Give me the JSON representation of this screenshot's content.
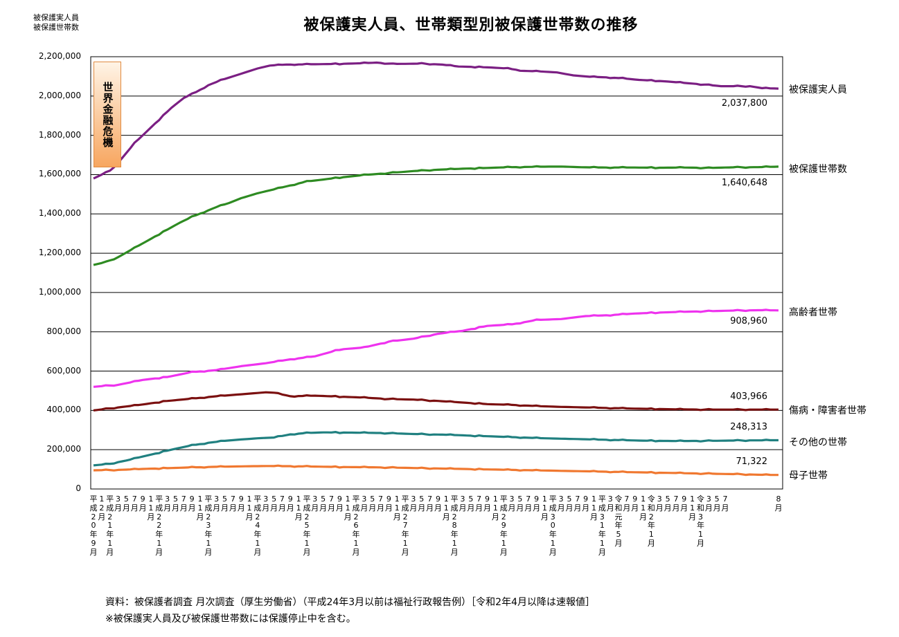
{
  "header": {
    "ylabel_line1": "被保護実人員",
    "ylabel_line2": "被保護世帯数",
    "title": "被保護実人員、世帯類型別被保護世帯数の推移"
  },
  "annotation": {
    "crisis_label": "世界金融危機"
  },
  "footer": {
    "source": "資料：被保護者調査 月次調査（厚生労働省）（平成24年3月以前は福祉行政報告例）［令和2年4月以降は速報値］",
    "note": "※被保護実人員及び被保護世帯数には保護停止中を含む。"
  },
  "chart_data": {
    "type": "line",
    "title": "被保護実人員、世帯類型別被保護世帯数の推移",
    "ylim": [
      0,
      2200000
    ],
    "grid": "horizontal",
    "legend": "right-end labels",
    "y_ticks": [
      "0",
      "200,000",
      "400,000",
      "600,000",
      "800,000",
      "1,000,000",
      "1,200,000",
      "1,400,000",
      "1,600,000",
      "1,800,000",
      "2,000,000",
      "2,200,000"
    ],
    "x_tick_labels": [
      "平\n成\n2\n0\n年\n9\n月",
      "1\n2\n月",
      "平\n成\n2\n1\n年\n1\n月",
      "3\n月",
      "5\n月",
      "7\n月",
      "9\n月",
      "1\n1\n月",
      "平\n成\n2\n2\n年\n1\n月",
      "3\n月",
      "5\n月",
      "7\n月",
      "9\n月",
      "1\n1\n月",
      "平\n成\n2\n3\n年\n1\n月",
      "3\n月",
      "5\n月",
      "7\n月",
      "9\n月",
      "1\n1\n月",
      "平\n成\n2\n4\n年\n1\n月",
      "3\n月",
      "5\n月",
      "7\n月",
      "9\n月",
      "1\n1\n月",
      "平\n成\n2\n5\n年\n1\n月",
      "3\n月",
      "5\n月",
      "7\n月",
      "9\n月",
      "1\n1\n月",
      "平\n成\n2\n6\n年\n1\n月",
      "3\n月",
      "5\n月",
      "7\n月",
      "9\n月",
      "1\n1\n月",
      "平\n成\n2\n7\n年\n1\n月",
      "3\n月",
      "5\n月",
      "7\n月",
      "9\n月",
      "1\n1\n月",
      "平\n成\n2\n8\n年\n1\n月",
      "3\n月",
      "5\n月",
      "7\n月",
      "9\n月",
      "1\n1\n月",
      "平\n成\n2\n9\n年\n1\n月",
      "3\n月",
      "5\n月",
      "7\n月",
      "9\n月",
      "1\n1\n月",
      "平\n成\n3\n0\n年\n1\n月",
      "3\n月",
      "5\n月",
      "7\n月",
      "9\n月",
      "1\n1\n月",
      "平\n成\n3\n1\n年\n1\n月",
      "3\n月",
      "令\n和\n元\n年\n5\n月",
      "7\n月",
      "9\n月",
      "1\n1\n月",
      "令\n和\n2\n年\n1\n月",
      "3\n月",
      "5\n月",
      "7\n月",
      "9\n月",
      "1\n1\n月",
      "令\n和\n3\n年\n1\n月",
      "3\n月",
      "5\n月",
      "7\n月",
      "8\n月"
    ],
    "series": [
      {
        "name": "被保護実人員",
        "color": "#7b1f83",
        "last_value": 2037800,
        "value_label": "2,037,800",
        "keypoints": [
          [
            0,
            1580000
          ],
          [
            2,
            1600000
          ],
          [
            4,
            1620000
          ],
          [
            6,
            1660000
          ],
          [
            8,
            1710000
          ],
          [
            10,
            1760000
          ],
          [
            13,
            1820000
          ],
          [
            16,
            1880000
          ],
          [
            19,
            1940000
          ],
          [
            22,
            1990000
          ],
          [
            25,
            2020000
          ],
          [
            28,
            2055000
          ],
          [
            31,
            2080000
          ],
          [
            34,
            2100000
          ],
          [
            37,
            2120000
          ],
          [
            40,
            2140000
          ],
          [
            43,
            2155000
          ],
          [
            47,
            2160000
          ],
          [
            55,
            2162000
          ],
          [
            63,
            2165000
          ],
          [
            69,
            2170000
          ],
          [
            73,
            2163000
          ],
          [
            80,
            2165000
          ],
          [
            85,
            2160000
          ],
          [
            89,
            2150000
          ],
          [
            93,
            2148000
          ],
          [
            97,
            2145000
          ],
          [
            101,
            2140000
          ],
          [
            105,
            2128000
          ],
          [
            109,
            2125000
          ],
          [
            113,
            2120000
          ],
          [
            117,
            2105000
          ],
          [
            121,
            2098000
          ],
          [
            125,
            2095000
          ],
          [
            129,
            2090000
          ],
          [
            133,
            2082000
          ],
          [
            137,
            2078000
          ],
          [
            141,
            2072000
          ],
          [
            145,
            2065000
          ],
          [
            149,
            2058000
          ],
          [
            153,
            2050000
          ],
          [
            157,
            2050000
          ],
          [
            160,
            2050000
          ],
          [
            163,
            2040000
          ],
          [
            167,
            2037800
          ]
        ]
      },
      {
        "name": "被保護世帯数",
        "color": "#2e8b22",
        "last_value": 1640648,
        "value_label": "1,640,648",
        "keypoints": [
          [
            0,
            1140000
          ],
          [
            3,
            1155000
          ],
          [
            6,
            1180000
          ],
          [
            9,
            1215000
          ],
          [
            12,
            1250000
          ],
          [
            15,
            1285000
          ],
          [
            18,
            1320000
          ],
          [
            21,
            1355000
          ],
          [
            24,
            1385000
          ],
          [
            27,
            1410000
          ],
          [
            30,
            1435000
          ],
          [
            33,
            1455000
          ],
          [
            36,
            1480000
          ],
          [
            40,
            1505000
          ],
          [
            44,
            1525000
          ],
          [
            48,
            1545000
          ],
          [
            52,
            1565000
          ],
          [
            56,
            1575000
          ],
          [
            60,
            1585000
          ],
          [
            66,
            1598000
          ],
          [
            72,
            1608000
          ],
          [
            78,
            1618000
          ],
          [
            84,
            1625000
          ],
          [
            90,
            1630000
          ],
          [
            96,
            1634000
          ],
          [
            102,
            1638000
          ],
          [
            108,
            1640000
          ],
          [
            114,
            1641000
          ],
          [
            120,
            1637000
          ],
          [
            126,
            1636000
          ],
          [
            132,
            1636000
          ],
          [
            138,
            1635000
          ],
          [
            144,
            1636000
          ],
          [
            150,
            1634000
          ],
          [
            156,
            1637000
          ],
          [
            162,
            1638000
          ],
          [
            167,
            1640648
          ]
        ]
      },
      {
        "name": "高齢者世帯",
        "color": "#ee33ee",
        "last_value": 908960,
        "value_label": "908,960",
        "keypoints": [
          [
            0,
            520000
          ],
          [
            6,
            530000
          ],
          [
            12,
            555000
          ],
          [
            18,
            570000
          ],
          [
            24,
            595000
          ],
          [
            30,
            605000
          ],
          [
            36,
            625000
          ],
          [
            42,
            640000
          ],
          [
            48,
            660000
          ],
          [
            54,
            675000
          ],
          [
            60,
            710000
          ],
          [
            66,
            720000
          ],
          [
            72,
            750000
          ],
          [
            78,
            765000
          ],
          [
            84,
            790000
          ],
          [
            90,
            805000
          ],
          [
            96,
            830000
          ],
          [
            102,
            838000
          ],
          [
            108,
            860000
          ],
          [
            114,
            865000
          ],
          [
            120,
            880000
          ],
          [
            126,
            885000
          ],
          [
            132,
            893000
          ],
          [
            138,
            898000
          ],
          [
            144,
            902000
          ],
          [
            150,
            905000
          ],
          [
            156,
            908000
          ],
          [
            162,
            910000
          ],
          [
            167,
            908960
          ]
        ]
      },
      {
        "name": "傷病・障害者世帯",
        "color": "#7b1010",
        "last_value": 403966,
        "value_label": "403,966",
        "keypoints": [
          [
            0,
            400000
          ],
          [
            6,
            415000
          ],
          [
            12,
            430000
          ],
          [
            18,
            448000
          ],
          [
            24,
            460000
          ],
          [
            30,
            472000
          ],
          [
            36,
            482000
          ],
          [
            42,
            492000
          ],
          [
            44,
            490000
          ],
          [
            48,
            472000
          ],
          [
            54,
            475000
          ],
          [
            60,
            470000
          ],
          [
            66,
            465000
          ],
          [
            72,
            458000
          ],
          [
            78,
            455000
          ],
          [
            84,
            448000
          ],
          [
            90,
            440000
          ],
          [
            96,
            432000
          ],
          [
            102,
            428000
          ],
          [
            108,
            422000
          ],
          [
            114,
            418000
          ],
          [
            120,
            415000
          ],
          [
            126,
            412000
          ],
          [
            132,
            409000
          ],
          [
            138,
            407000
          ],
          [
            144,
            405000
          ],
          [
            150,
            404000
          ],
          [
            156,
            404000
          ],
          [
            162,
            404000
          ],
          [
            167,
            403966
          ]
        ]
      },
      {
        "name": "その他の世帯",
        "color": "#208080",
        "last_value": 248313,
        "value_label": "248,313",
        "keypoints": [
          [
            0,
            120000
          ],
          [
            4,
            128000
          ],
          [
            8,
            145000
          ],
          [
            12,
            165000
          ],
          [
            16,
            185000
          ],
          [
            20,
            205000
          ],
          [
            24,
            222000
          ],
          [
            28,
            235000
          ],
          [
            32,
            245000
          ],
          [
            36,
            252000
          ],
          [
            40,
            258000
          ],
          [
            44,
            262000
          ],
          [
            48,
            278000
          ],
          [
            52,
            285000
          ],
          [
            56,
            288000
          ],
          [
            62,
            287000
          ],
          [
            70,
            285000
          ],
          [
            78,
            280000
          ],
          [
            86,
            276000
          ],
          [
            94,
            270000
          ],
          [
            102,
            264000
          ],
          [
            110,
            258000
          ],
          [
            118,
            254000
          ],
          [
            126,
            250000
          ],
          [
            134,
            246000
          ],
          [
            142,
            244000
          ],
          [
            150,
            245000
          ],
          [
            158,
            247000
          ],
          [
            167,
            248313
          ]
        ]
      },
      {
        "name": "母子世帯",
        "color": "#f07830",
        "last_value": 71322,
        "value_label": "71,322",
        "keypoints": [
          [
            0,
            95000
          ],
          [
            6,
            97000
          ],
          [
            12,
            102000
          ],
          [
            18,
            106000
          ],
          [
            24,
            110000
          ],
          [
            30,
            113000
          ],
          [
            36,
            115000
          ],
          [
            42,
            117000
          ],
          [
            48,
            116000
          ],
          [
            54,
            114000
          ],
          [
            60,
            112000
          ],
          [
            70,
            110000
          ],
          [
            80,
            106000
          ],
          [
            90,
            102000
          ],
          [
            100,
            98000
          ],
          [
            110,
            94000
          ],
          [
            120,
            90000
          ],
          [
            130,
            86000
          ],
          [
            140,
            82000
          ],
          [
            150,
            78000
          ],
          [
            158,
            75000
          ],
          [
            163,
            72000
          ],
          [
            167,
            71322
          ]
        ]
      }
    ]
  }
}
